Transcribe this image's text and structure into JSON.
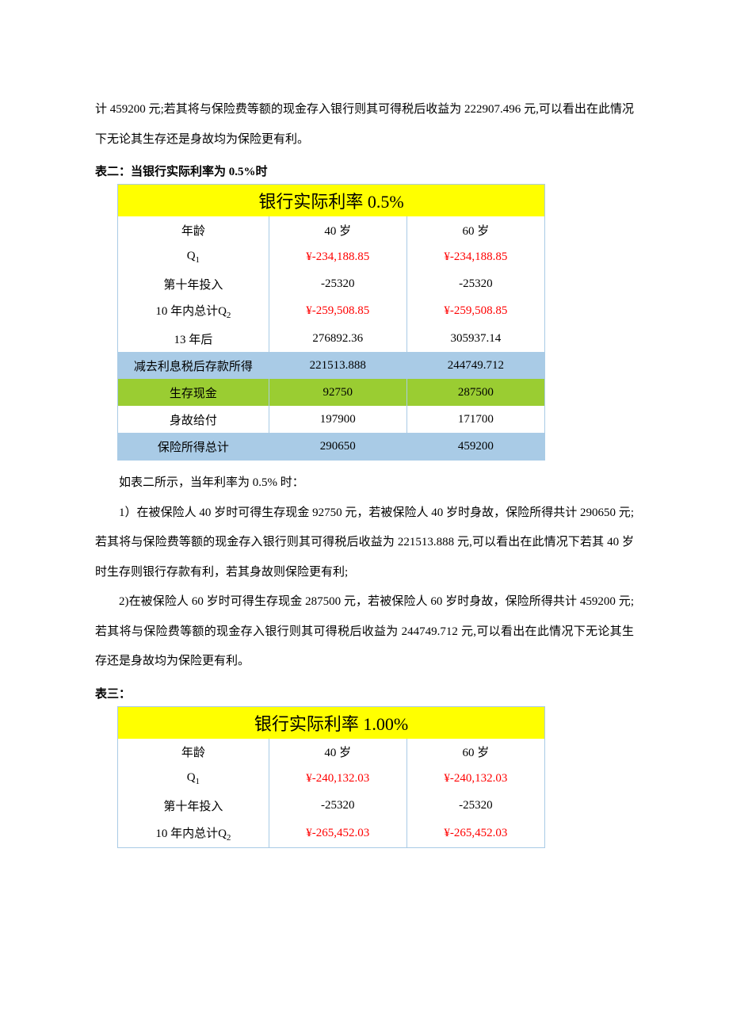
{
  "intro_para": "计 459200 元;若其将与保险费等额的现金存入银行则其可得税后收益为 222907.496 元,可以看出在此情况下无论其生存还是身故均为保险更有利。",
  "table2": {
    "caption": "表二：当银行实际利率为 0.5%时",
    "title": "银行实际利率 0.5%",
    "age_label": "年龄",
    "age40": "40 岁",
    "age60": "60 岁",
    "q1_label_pre": "Q",
    "q1_label_sub": "1",
    "q1_40": "¥-234,188.85",
    "q1_60": "¥-234,188.85",
    "tenth_label": "第十年投入",
    "tenth_40": "-25320",
    "tenth_60": "-25320",
    "q2_label_pre": "10 年内总计Q",
    "q2_label_sub": "2",
    "q2_40": "¥-259,508.85",
    "q2_60": "¥-259,508.85",
    "after13_label": "13 年后",
    "after13_40": "276892.36",
    "after13_60": "305937.14",
    "taxed_label": "减去利息税后存款所得",
    "taxed_40": "221513.888",
    "taxed_60": "244749.712",
    "survive_label": "生存现金",
    "survive_40": "92750",
    "survive_60": "287500",
    "death_label": "身故给付",
    "death_40": "197900",
    "death_60": "171700",
    "total_label": "保险所得总计",
    "total_40": "290650",
    "total_60": "459200"
  },
  "mid1": "如表二所示，当年利率为 0.5% 时：",
  "mid2": "1）在被保险人 40 岁时可得生存现金 92750 元，若被保险人 40 岁时身故，保险所得共计 290650 元;若其将与保险费等额的现金存入银行则其可得税后收益为 221513.888 元,可以看出在此情况下若其 40 岁时生存则银行存款有利，若其身故则保险更有利;",
  "mid3": "2)在被保险人 60 岁时可得生存现金 287500 元，若被保险人 60 岁时身故，保险所得共计 459200 元;若其将与保险费等额的现金存入银行则其可得税后收益为 244749.712 元,可以看出在此情况下无论其生存还是身故均为保险更有利。",
  "table3": {
    "caption": "表三：",
    "title": "银行实际利率 1.00%",
    "age_label": "年龄",
    "age40": "40 岁",
    "age60": "60 岁",
    "q1_label_pre": "Q",
    "q1_label_sub": "1",
    "q1_40": "¥-240,132.03",
    "q1_60": "¥-240,132.03",
    "tenth_label": "第十年投入",
    "tenth_40": "-25320",
    "tenth_60": "-25320",
    "q2_label_pre": "10 年内总计Q",
    "q2_label_sub": "2",
    "q2_40": "¥-265,452.03",
    "q2_60": "¥-265,452.03"
  },
  "colors": {
    "yellow": "#ffff00",
    "blue": "#a9cbe6",
    "green": "#9acd32",
    "red": "#ff0000",
    "black": "#000000"
  }
}
